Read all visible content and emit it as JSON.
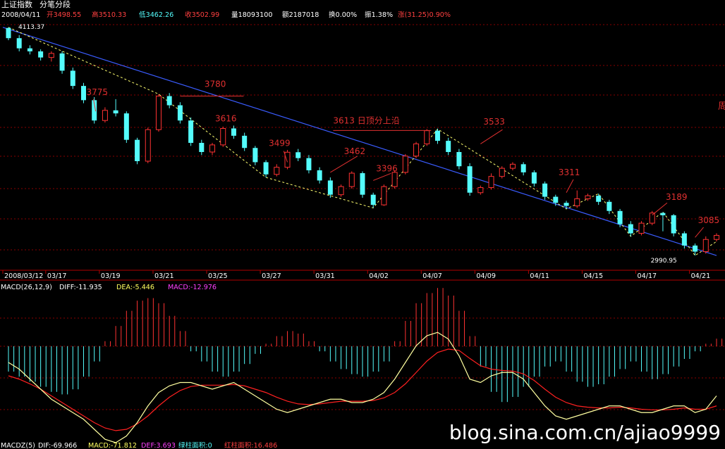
{
  "header": {
    "title": "上证指数",
    "mode": "分笔分段",
    "date": "2008/04/11",
    "open": "开3498.55",
    "high": "高3510.33",
    "low": "低3462.26",
    "close": "收3502.99",
    "volume": "量18093100",
    "amount": "额2187018",
    "turnover": "换0.00%",
    "amplitude": "振1.38%",
    "change": "涨(31.25)0.90%"
  },
  "macd_header": {
    "label": "MACD(26,12,9)",
    "diff": "DIFF:-11.935",
    "dea": "DEA:-5.446",
    "macd": "MACD:-12.976"
  },
  "macdz_header": {
    "label": "MACDZ(5)",
    "dif": "DIF:-69.966",
    "macd": "MACD:-71.812",
    "def": "DEF:3.693",
    "green_area": "绿柱面积:0",
    "red_area": "红柱面积:16.486"
  },
  "watermark": "blog.sina.com.cn/ajiao9999",
  "side_label": "周",
  "colors": {
    "up": "#ff3232",
    "down": "#54fcfc",
    "dif_line": "#ffffa0",
    "dea_line": "#ff2020",
    "trend_line": "#3a5cff",
    "zigzag": "#ffff70",
    "annot": "#e03030",
    "axis": "#b00000"
  },
  "chart_data": {
    "type": "candlestick",
    "xlabels": [
      {
        "i": 0,
        "label": "2008/03/12"
      },
      {
        "i": 4,
        "label": "03/17"
      },
      {
        "i": 9,
        "label": "03/19"
      },
      {
        "i": 14,
        "label": "03/21"
      },
      {
        "i": 19,
        "label": "03/25"
      },
      {
        "i": 24,
        "label": "03/27"
      },
      {
        "i": 29,
        "label": "03/31"
      },
      {
        "i": 34,
        "label": "04/02"
      },
      {
        "i": 39,
        "label": "04/07"
      },
      {
        "i": 44,
        "label": "04/09"
      },
      {
        "i": 49,
        "label": "04/11"
      },
      {
        "i": 54,
        "label": "04/15"
      },
      {
        "i": 59,
        "label": "04/17"
      },
      {
        "i": 64,
        "label": "04/21"
      }
    ],
    "price_range": [
      2960,
      4130
    ],
    "grid": true,
    "candles": [
      [
        4110,
        4060,
        4113.37,
        4050
      ],
      [
        4060,
        4010,
        4075,
        3995
      ],
      [
        4010,
        3995,
        4025,
        3980
      ],
      [
        3995,
        3965,
        4005,
        3950
      ],
      [
        3965,
        3985,
        3995,
        3945
      ],
      [
        3985,
        3900,
        3995,
        3885
      ],
      [
        3900,
        3825,
        3915,
        3810
      ],
      [
        3825,
        3755,
        3840,
        3740
      ],
      [
        3755,
        3655,
        3770,
        3640
      ],
      [
        3655,
        3705,
        3720,
        3645
      ],
      [
        3705,
        3690,
        3760,
        3675
      ],
      [
        3690,
        3560,
        3700,
        3545
      ],
      [
        3560,
        3455,
        3570,
        3440
      ],
      [
        3455,
        3610,
        3620,
        3445
      ],
      [
        3610,
        3775,
        3785,
        3600
      ],
      [
        3775,
        3730,
        3790,
        3715
      ],
      [
        3730,
        3655,
        3745,
        3640
      ],
      [
        3655,
        3545,
        3670,
        3530
      ],
      [
        3545,
        3500,
        3560,
        3485
      ],
      [
        3500,
        3535,
        3545,
        3485
      ],
      [
        3535,
        3616,
        3625,
        3525
      ],
      [
        3616,
        3580,
        3630,
        3565
      ],
      [
        3580,
        3520,
        3595,
        3505
      ],
      [
        3520,
        3450,
        3530,
        3435
      ],
      [
        3450,
        3390,
        3460,
        3375
      ],
      [
        3390,
        3425,
        3440,
        3380
      ],
      [
        3425,
        3499,
        3510,
        3415
      ],
      [
        3499,
        3470,
        3515,
        3455
      ],
      [
        3470,
        3410,
        3485,
        3395
      ],
      [
        3410,
        3360,
        3425,
        3345
      ],
      [
        3360,
        3290,
        3375,
        3275
      ],
      [
        3290,
        3330,
        3340,
        3280
      ],
      [
        3330,
        3396,
        3405,
        3320
      ],
      [
        3396,
        3290,
        3405,
        3275
      ],
      [
        3290,
        3240,
        3300,
        3225
      ],
      [
        3240,
        3330,
        3340,
        3235
      ],
      [
        3330,
        3400,
        3410,
        3320
      ],
      [
        3400,
        3480,
        3490,
        3390
      ],
      [
        3480,
        3540,
        3550,
        3470
      ],
      [
        3540,
        3605,
        3613,
        3530
      ],
      [
        3605,
        3555,
        3615,
        3540
      ],
      [
        3555,
        3500,
        3570,
        3485
      ],
      [
        3500,
        3430,
        3515,
        3415
      ],
      [
        3430,
        3300,
        3445,
        3285
      ],
      [
        3300,
        3325,
        3335,
        3290
      ],
      [
        3325,
        3380,
        3395,
        3315
      ],
      [
        3380,
        3420,
        3430,
        3370
      ],
      [
        3420,
        3440,
        3450,
        3410
      ],
      [
        3440,
        3400,
        3450,
        3385
      ],
      [
        3400,
        3345,
        3410,
        3330
      ],
      [
        3345,
        3280,
        3355,
        3265
      ],
      [
        3280,
        3250,
        3290,
        3235
      ],
      [
        3250,
        3235,
        3260,
        3220
      ],
      [
        3235,
        3270,
        3311,
        3225
      ],
      [
        3270,
        3285,
        3295,
        3260
      ],
      [
        3285,
        3255,
        3295,
        3240
      ],
      [
        3255,
        3210,
        3265,
        3195
      ],
      [
        3210,
        3145,
        3220,
        3130
      ],
      [
        3145,
        3100,
        3160,
        3085
      ],
      [
        3100,
        3150,
        3160,
        3090
      ],
      [
        3150,
        3200,
        3210,
        3140
      ],
      [
        3200,
        3189,
        3205,
        3110
      ],
      [
        3189,
        3100,
        3195,
        3085
      ],
      [
        3100,
        3040,
        3110,
        3025
      ],
      [
        3040,
        3010,
        3050,
        2990.95
      ],
      [
        3010,
        3070,
        3085,
        3000
      ],
      [
        3070,
        3090,
        3100,
        3060
      ]
    ],
    "macd_hist": [
      -0.5,
      -0.6,
      -0.7,
      -0.8,
      -0.9,
      -0.95,
      -0.85,
      -0.6,
      -0.3,
      0.1,
      0.4,
      0.7,
      0.9,
      0.95,
      0.85,
      0.6,
      0.3,
      -0.1,
      -0.3,
      -0.5,
      -0.6,
      -0.5,
      -0.35,
      -0.15,
      0.05,
      0.2,
      0.3,
      0.25,
      0.1,
      -0.1,
      -0.3,
      -0.45,
      -0.55,
      -0.6,
      -0.5,
      -0.3,
      0.1,
      0.5,
      0.85,
      1.05,
      1.15,
      1.0,
      0.7,
      0.2,
      -0.4,
      -0.9,
      -1.1,
      -1.0,
      -0.8,
      -0.6,
      -0.4,
      -0.3,
      -0.5,
      -0.7,
      -0.8,
      -0.75,
      -0.6,
      -0.45,
      -0.3,
      -0.5,
      -0.65,
      -0.55,
      -0.4,
      -0.25,
      -0.1,
      0.05,
      0.15
    ],
    "macdz_dif": [
      0.6,
      0.5,
      0.35,
      0.2,
      0.05,
      -0.05,
      -0.15,
      -0.25,
      -0.4,
      -0.55,
      -0.6,
      -0.5,
      -0.3,
      -0.05,
      0.15,
      0.25,
      0.3,
      0.3,
      0.25,
      0.2,
      0.25,
      0.3,
      0.2,
      0.1,
      0.0,
      -0.1,
      -0.15,
      -0.1,
      -0.05,
      0.0,
      0.05,
      0.05,
      0.0,
      0.0,
      0.05,
      0.15,
      0.35,
      0.6,
      0.85,
      1.0,
      1.05,
      0.95,
      0.7,
      0.35,
      0.3,
      0.4,
      0.45,
      0.45,
      0.35,
      0.15,
      -0.05,
      -0.2,
      -0.25,
      -0.2,
      -0.15,
      -0.1,
      -0.05,
      -0.05,
      -0.1,
      -0.15,
      -0.15,
      -0.1,
      -0.05,
      -0.05,
      -0.15,
      -0.1,
      0.1
    ],
    "macdz_dea": [
      0.4,
      0.35,
      0.28,
      0.2,
      0.1,
      0.0,
      -0.1,
      -0.2,
      -0.3,
      -0.38,
      -0.42,
      -0.4,
      -0.32,
      -0.2,
      -0.05,
      0.08,
      0.18,
      0.24,
      0.26,
      0.26,
      0.26,
      0.27,
      0.25,
      0.2,
      0.15,
      0.08,
      0.02,
      -0.02,
      -0.03,
      -0.02,
      0.0,
      0.02,
      0.02,
      0.02,
      0.03,
      0.07,
      0.15,
      0.28,
      0.45,
      0.62,
      0.75,
      0.8,
      0.78,
      0.66,
      0.55,
      0.5,
      0.48,
      0.47,
      0.43,
      0.33,
      0.2,
      0.08,
      0.0,
      -0.05,
      -0.07,
      -0.08,
      -0.08,
      -0.07,
      -0.08,
      -0.1,
      -0.11,
      -0.11,
      -0.1,
      -0.08,
      -0.1,
      -0.1,
      -0.05
    ],
    "trend_line": [
      [
        0,
        4113.37
      ],
      [
        66,
        2990.95
      ]
    ],
    "zigzag": [
      [
        0,
        4113.37
      ],
      [
        14,
        3785
      ],
      [
        24,
        3375
      ],
      [
        34,
        3225
      ],
      [
        40,
        3613
      ],
      [
        52,
        3220
      ],
      [
        55,
        3295
      ],
      [
        58,
        3085
      ],
      [
        61,
        3205
      ],
      [
        64,
        2990.95
      ],
      [
        66,
        3060
      ]
    ],
    "annotations": [
      {
        "i": 7,
        "p": 3780,
        "text": "3775"
      },
      {
        "i": 18,
        "p": 3820,
        "text": "3780"
      },
      {
        "i": 19,
        "p": 3650,
        "text": "3616"
      },
      {
        "i": 24,
        "p": 3530,
        "text": "3499"
      },
      {
        "i": 31,
        "p": 3490,
        "text": "3462"
      },
      {
        "i": 34,
        "p": 3405,
        "text": "3396"
      },
      {
        "i": 30,
        "p": 3640,
        "text": "3613 日顶分上沿"
      },
      {
        "i": 44,
        "p": 3635,
        "text": "3533"
      },
      {
        "i": 51,
        "p": 3385,
        "text": "3311"
      },
      {
        "i": 61,
        "p": 3265,
        "text": "3189"
      },
      {
        "i": 64,
        "p": 3150,
        "text": "3085"
      }
    ],
    "start_price_label": "4113.37",
    "low_price_label": "2990.95"
  }
}
